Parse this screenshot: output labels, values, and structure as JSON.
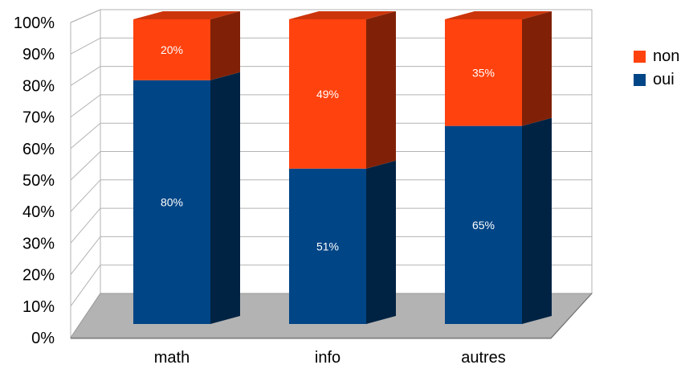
{
  "chart_data": {
    "type": "bar",
    "stacked": true,
    "percent": true,
    "three_d": true,
    "categories": [
      "math",
      "info",
      "autres"
    ],
    "series": [
      {
        "name": "oui",
        "values": [
          80,
          51,
          65
        ],
        "color": "#004586"
      },
      {
        "name": "non",
        "values": [
          20,
          49,
          35
        ],
        "color": "#ff420e"
      }
    ],
    "value_labels": {
      "oui": [
        "80%",
        "51%",
        "65%"
      ],
      "non": [
        "20%",
        "49%",
        "35%"
      ]
    },
    "y_ticks": [
      "0%",
      "10%",
      "20%",
      "30%",
      "40%",
      "50%",
      "60%",
      "70%",
      "80%",
      "90%",
      "100%"
    ],
    "ylim": [
      0,
      100
    ],
    "grid": true,
    "legend_position": "right",
    "legend": [
      "non",
      "oui"
    ]
  }
}
